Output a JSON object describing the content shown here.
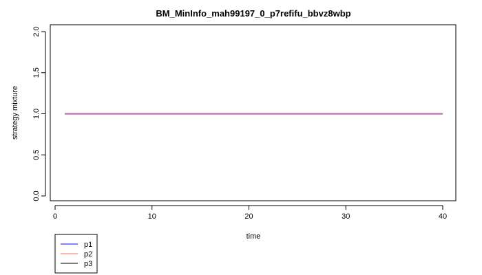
{
  "chart_data": {
    "type": "line",
    "title": "BM_MinInfo_mah99197_0_p7refifu_bbvz8wbp",
    "xlabel": "time",
    "ylabel": "strategy mixture",
    "xlim": [
      0,
      40
    ],
    "ylim": [
      0,
      2
    ],
    "x_ticks": [
      "0",
      "10",
      "20",
      "30",
      "40"
    ],
    "y_ticks": [
      "0.0",
      "0.5",
      "1.0",
      "1.5",
      "2.0"
    ],
    "grid": false,
    "legend_position": "bottom-left",
    "x": [
      1,
      40
    ],
    "series": [
      {
        "name": "p1",
        "color": "#0000ff",
        "values": [
          1.0,
          1.0
        ]
      },
      {
        "name": "p2",
        "color": "#ff6f61",
        "values": [
          1.0,
          1.0
        ]
      },
      {
        "name": "p3",
        "color": "#000000",
        "values": [
          1.0,
          1.0
        ]
      }
    ],
    "overlay_color": "#c879b4"
  }
}
